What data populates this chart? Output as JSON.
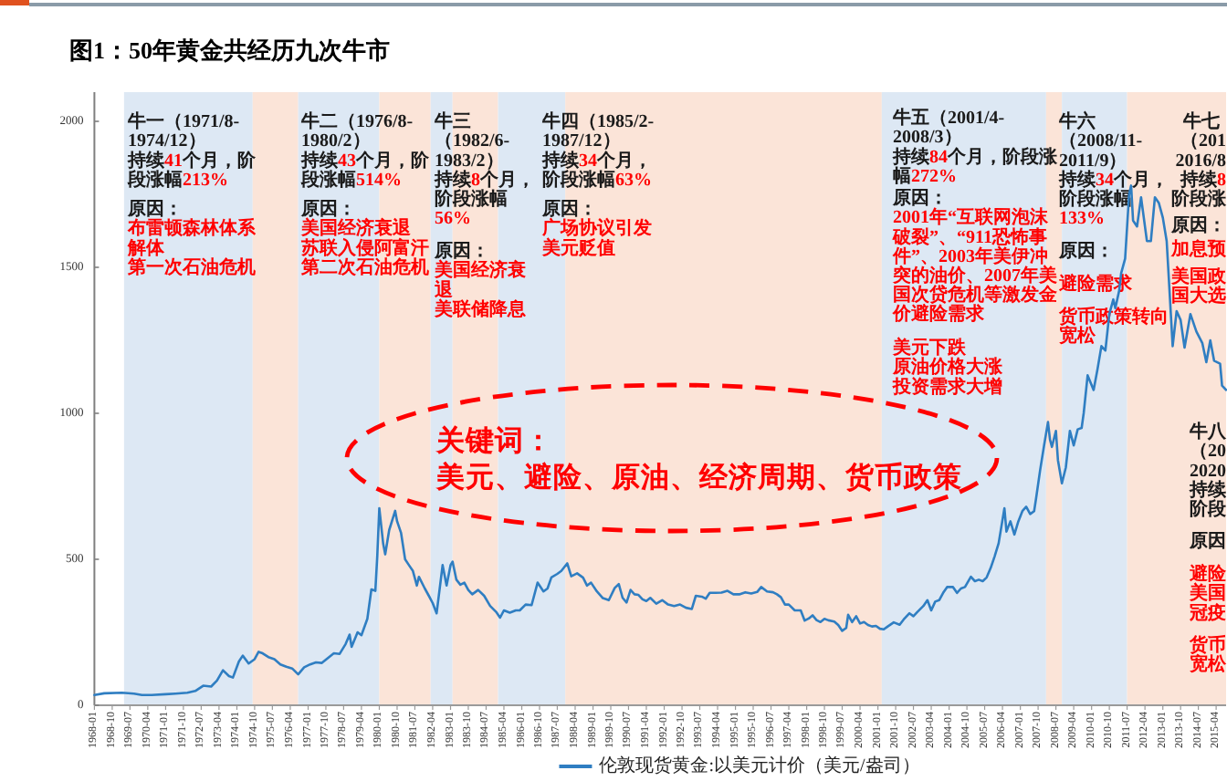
{
  "chart_data": {
    "type": "line",
    "title": "图1：50年黄金共经历九次牛市",
    "x": [
      "1968-01",
      "1968-06",
      "1969-03",
      "1969-09",
      "1970-01",
      "1970-06",
      "1971-01",
      "1971-06",
      "1971-12",
      "1972-04",
      "1972-08",
      "1972-12",
      "1973-03",
      "1973-06",
      "1973-09",
      "1973-11",
      "1974-02",
      "1974-04",
      "1974-07",
      "1974-10",
      "1974-12",
      "1975-02",
      "1975-05",
      "1975-08",
      "1975-11",
      "1976-02",
      "1976-05",
      "1976-08",
      "1976-11",
      "1977-02",
      "1977-05",
      "1977-08",
      "1977-11",
      "1978-02",
      "1978-05",
      "1978-08",
      "1978-10",
      "1978-11",
      "1979-02",
      "1979-04",
      "1979-07",
      "1979-09",
      "1979-11",
      "1979-12",
      "1980-01",
      "1980-03",
      "1980-04",
      "1980-06",
      "1980-09",
      "1980-10",
      "1980-12",
      "1981-02",
      "1981-04",
      "1981-06",
      "1981-08",
      "1981-09",
      "1981-12",
      "1982-02",
      "1982-04",
      "1982-06",
      "1982-09",
      "1982-11",
      "1983-01",
      "1983-02",
      "1983-04",
      "1983-06",
      "1983-08",
      "1983-10",
      "1983-12",
      "1984-03",
      "1984-06",
      "1984-09",
      "1984-12",
      "1985-02",
      "1985-04",
      "1985-07",
      "1985-10",
      "1985-12",
      "1986-03",
      "1986-06",
      "1986-09",
      "1986-12",
      "1987-02",
      "1987-04",
      "1987-07",
      "1987-09",
      "1987-12",
      "1988-02",
      "1988-05",
      "1988-08",
      "1988-10",
      "1988-12",
      "1989-03",
      "1989-06",
      "1989-09",
      "1989-12",
      "1990-02",
      "1990-04",
      "1990-06",
      "1990-08",
      "1990-10",
      "1990-12",
      "1991-02",
      "1991-04",
      "1991-06",
      "1991-09",
      "1991-12",
      "1992-03",
      "1992-06",
      "1992-09",
      "1992-12",
      "1993-03",
      "1993-05",
      "1993-08",
      "1993-10",
      "1993-12",
      "1994-03",
      "1994-06",
      "1994-09",
      "1994-12",
      "1995-03",
      "1995-06",
      "1995-09",
      "1995-12",
      "1996-02",
      "1996-05",
      "1996-08",
      "1996-10",
      "1996-12",
      "1997-02",
      "1997-04",
      "1997-07",
      "1997-10",
      "1997-12",
      "1998-02",
      "1998-04",
      "1998-06",
      "1998-08",
      "1998-10",
      "1998-12",
      "1999-03",
      "1999-05",
      "1999-07",
      "1999-09",
      "1999-10",
      "1999-12",
      "2000-02",
      "2000-04",
      "2000-06",
      "2000-08",
      "2000-10",
      "2000-12",
      "2001-02",
      "2001-04",
      "2001-06",
      "2001-09",
      "2001-12",
      "2002-02",
      "2002-05",
      "2002-07",
      "2002-09",
      "2002-12",
      "2003-02",
      "2003-04",
      "2003-06",
      "2003-08",
      "2003-10",
      "2003-12",
      "2004-03",
      "2004-05",
      "2004-07",
      "2004-09",
      "2004-12",
      "2005-02",
      "2005-04",
      "2005-06",
      "2005-08",
      "2005-10",
      "2005-12",
      "2006-02",
      "2006-05",
      "2006-06",
      "2006-08",
      "2006-10",
      "2006-12",
      "2007-02",
      "2007-04",
      "2007-06",
      "2007-08",
      "2007-09",
      "2007-11",
      "2008-01",
      "2008-03",
      "2008-04",
      "2008-05",
      "2008-07",
      "2008-08",
      "2008-10",
      "2008-12",
      "2009-02",
      "2009-04",
      "2009-06",
      "2009-08",
      "2009-09",
      "2009-11",
      "2010-02",
      "2010-04",
      "2010-06",
      "2010-08",
      "2010-10",
      "2010-12",
      "2011-01",
      "2011-03",
      "2011-04",
      "2011-06",
      "2011-08",
      "2011-09",
      "2011-10",
      "2011-12",
      "2012-02",
      "2012-05",
      "2012-07",
      "2012-09",
      "2012-11",
      "2013-01",
      "2013-03",
      "2013-04",
      "2013-06",
      "2013-08",
      "2013-10",
      "2013-12",
      "2014-03",
      "2014-06",
      "2014-09",
      "2014-11",
      "2015-01",
      "2015-03",
      "2015-06",
      "2015-07",
      "2015-09"
    ],
    "series": [
      {
        "name": "伦敦现货黄金:以美元计价（美元/盎司）",
        "color": "#2f7ec2",
        "values": [
          35,
          41,
          43,
          40,
          35,
          35,
          38,
          40,
          43,
          49,
          67,
          64,
          85,
          120,
          100,
          95,
          150,
          170,
          143,
          158,
          183,
          178,
          165,
          158,
          140,
          132,
          126,
          106,
          130,
          140,
          147,
          145,
          162,
          178,
          176,
          210,
          242,
          200,
          250,
          240,
          296,
          397,
          392,
          512,
          675,
          553,
          517,
          600,
          666,
          630,
          590,
          500,
          480,
          460,
          410,
          440,
          400,
          375,
          350,
          315,
          480,
          410,
          480,
          492,
          430,
          413,
          420,
          395,
          380,
          395,
          375,
          340,
          320,
          300,
          325,
          317,
          325,
          325,
          345,
          343,
          420,
          390,
          400,
          438,
          450,
          460,
          486,
          442,
          452,
          437,
          410,
          420,
          390,
          367,
          360,
          402,
          415,
          368,
          352,
          395,
          380,
          378,
          363,
          357,
          368,
          348,
          360,
          345,
          340,
          345,
          334,
          330,
          375,
          372,
          365,
          385,
          385,
          386,
          392,
          380,
          380,
          387,
          383,
          388,
          405,
          390,
          387,
          380,
          370,
          345,
          345,
          325,
          325,
          290,
          297,
          308,
          292,
          285,
          296,
          291,
          287,
          275,
          255,
          265,
          310,
          285,
          305,
          280,
          285,
          275,
          270,
          272,
          262,
          260,
          270,
          284,
          276,
          294,
          315,
          305,
          320,
          340,
          360,
          325,
          355,
          360,
          385,
          405,
          405,
          385,
          400,
          405,
          440,
          425,
          430,
          425,
          438,
          470,
          510,
          555,
          675,
          595,
          630,
          585,
          630,
          665,
          680,
          655,
          665,
          710,
          805,
          890,
          970,
          910,
          885,
          940,
          840,
          760,
          815,
          940,
          890,
          945,
          950,
          1000,
          1130,
          1080,
          1150,
          1230,
          1215,
          1340,
          1390,
          1360,
          1420,
          1480,
          1530,
          1750,
          1780,
          1660,
          1640,
          1740,
          1590,
          1590,
          1740,
          1720,
          1670,
          1590,
          1470,
          1230,
          1350,
          1320,
          1225,
          1340,
          1280,
          1240,
          1175,
          1250,
          1180,
          1170,
          1095,
          1080
        ]
      }
    ],
    "xlim": [
      "1968-01",
      "2015-09"
    ],
    "xticks": [
      "1968-01",
      "1968-10",
      "1969-07",
      "1970-04",
      "1971-01",
      "1971-10",
      "1972-07",
      "1973-04",
      "1974-01",
      "1974-10",
      "1975-07",
      "1976-04",
      "1977-01",
      "1977-10",
      "1978-07",
      "1979-04",
      "1980-01",
      "1980-10",
      "1981-07",
      "1982-04",
      "1983-01",
      "1983-10",
      "1984-07",
      "1985-04",
      "1986-01",
      "1986-10",
      "1987-07",
      "1988-04",
      "1989-01",
      "1989-10",
      "1990-07",
      "1991-04",
      "1992-01",
      "1992-10",
      "1993-07",
      "1994-04",
      "1995-01",
      "1995-10",
      "1996-07",
      "1997-04",
      "1998-01",
      "1998-10",
      "1999-07",
      "2000-04",
      "2001-01",
      "2001-10",
      "2002-07",
      "2003-04",
      "2004-01",
      "2004-10",
      "2005-07",
      "2006-04",
      "2007-01",
      "2007-10",
      "2008-07",
      "2009-04",
      "2010-01",
      "2010-10",
      "2011-07",
      "2012-04",
      "2013-01",
      "2013-10",
      "2014-07",
      "2015-04"
    ],
    "ylim": [
      0,
      2100
    ],
    "yticks": [
      0,
      500,
      1000,
      1500,
      2000
    ],
    "bands": [
      {
        "axis": "x",
        "from": "1969-04",
        "to": "1974-09",
        "color": "#dde8f4"
      },
      {
        "axis": "x",
        "from": "1974-09",
        "to": "1976-08",
        "color": "#fbe4d8"
      },
      {
        "axis": "x",
        "from": "1976-08",
        "to": "1980-01",
        "color": "#dde8f4"
      },
      {
        "axis": "x",
        "from": "1980-01",
        "to": "1982-03",
        "color": "#fbe4d8"
      },
      {
        "axis": "x",
        "from": "1982-03",
        "to": "1983-02",
        "color": "#dde8f4"
      },
      {
        "axis": "x",
        "from": "1983-02",
        "to": "1985-01",
        "color": "#fbe4d8"
      },
      {
        "axis": "x",
        "from": "1985-01",
        "to": "1987-11",
        "color": "#dde8f4"
      },
      {
        "axis": "x",
        "from": "1987-11",
        "to": "2001-03",
        "color": "#fbe4d8"
      },
      {
        "axis": "x",
        "from": "2001-03",
        "to": "2008-02",
        "color": "#dde8f4"
      },
      {
        "axis": "x",
        "from": "2008-02",
        "to": "2008-10",
        "color": "#fbe4d8"
      },
      {
        "axis": "x",
        "from": "2008-10",
        "to": "2011-07",
        "color": "#dde8f4"
      },
      {
        "axis": "x",
        "from": "2011-07",
        "to": "2015-09",
        "color": "#fbe4d8"
      }
    ],
    "annotations": [
      "关键词：",
      "美元、避险、原油、经济周期、货币政策",
      "牛一（1971/8-1974/12）",
      "持续41个月，阶段涨幅213%",
      "原因：",
      "布雷顿森林体系解体",
      "第一次石油危机",
      "牛二（1976/8-1980/2）",
      "持续43个月，阶段涨幅514%",
      "原因：",
      "美国经济衰退",
      "苏联入侵阿富汗",
      "第二次石油危机",
      "牛三（1982/6-1983/2）",
      "持续8个月，阶段涨幅56%",
      "原因：",
      "美国经济衰退",
      "美联储降息",
      "牛四（1985/2-1987/12）",
      "持续34个月，阶段涨幅63%",
      "原因：",
      "广场协议引发美元贬值",
      "牛五（2001/4-2008/3）",
      "持续84个月，阶段涨幅272%",
      "原因：",
      "2001年“互联网泡沫破裂”、“911恐怖事件”、2003年美伊冲突的油价、2007年美国次贷危机等激发金价避险需求",
      "美元下跌",
      "原油价格大涨",
      "投资需求大增",
      "牛六（2008/11-2011/9）",
      "持续34个月，阶段涨幅133%",
      "原因：",
      "避险需求",
      "货币政策转向宽松",
      "牛七",
      "（201",
      "2016/8",
      "持续8",
      "阶段涨",
      "原因：",
      "加息预",
      "美国政",
      "国大选",
      "牛八",
      "（20",
      "2020",
      "持续",
      "阶段",
      "原因",
      "避险",
      "美国",
      "冠疫",
      "货币",
      "宽松"
    ],
    "legend": "bottom"
  }
}
